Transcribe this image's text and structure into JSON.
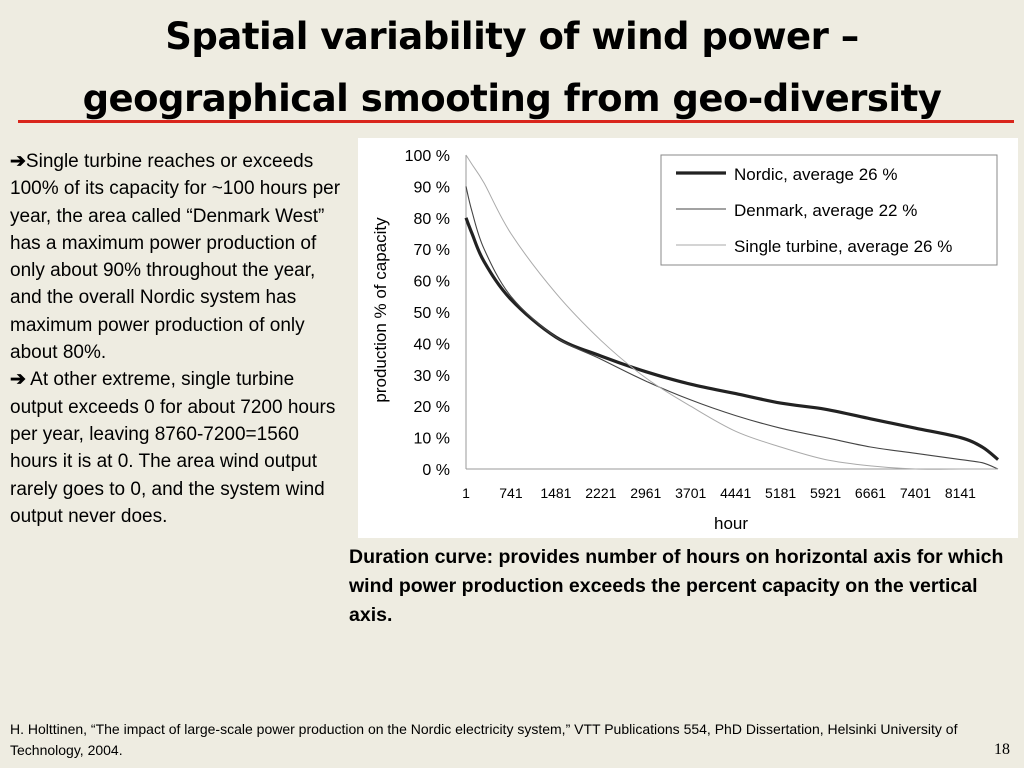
{
  "slide": {
    "title_line1": "Spatial variability of wind power –",
    "title_line2": "geographical smooting from geo-diversity",
    "bullets": [
      {
        "arrow": "➔",
        "text": "Single turbine reaches or exceeds 100% of its capacity for ~100 hours per year, the area called “Denmark West” has a maximum power production of only about 90% throughout the year, and the overall Nordic system has maximum power production of only about 80%."
      },
      {
        "arrow": "➔",
        "text": " At other extreme, single turbine output exceeds 0 for about 7200 hours per year, leaving 8760-7200=1560 hours it is at 0. The area wind output rarely goes to 0, and the system wind output never does."
      }
    ],
    "caption": "Duration curve: provides number of hours on horizontal axis for which wind power production exceeds the percent capacity on the vertical axis.",
    "footer": "H. Holttinen, “The impact of large-scale power production on the Nordic electricity system,” VTT Publications 554, PhD Dissertation, Helsinki University of Technology, 2004.",
    "page_number": "18",
    "accent_color": "#d9261c",
    "background_color": "#eeece1"
  },
  "chart_data": {
    "type": "line",
    "xlabel": "hour",
    "ylabel": "production % of capacity",
    "xlim": [
      1,
      8760
    ],
    "ylim": [
      0,
      100
    ],
    "x_ticks": [
      "1",
      "741",
      "1481",
      "2221",
      "2961",
      "3701",
      "4441",
      "5181",
      "5921",
      "6661",
      "7401",
      "8141"
    ],
    "y_ticks": [
      "0 %",
      "10 %",
      "20 %",
      "30 %",
      "40 %",
      "50 %",
      "60 %",
      "70 %",
      "80 %",
      "90 %",
      "100 %"
    ],
    "legend_position": "top-right",
    "x": [
      1,
      100,
      300,
      741,
      1481,
      2221,
      2961,
      3701,
      4441,
      5181,
      5921,
      6661,
      7401,
      8141,
      8500,
      8760
    ],
    "series": [
      {
        "name": "Nordic, average 26 %",
        "style": "thick",
        "values": [
          80,
          75,
          66,
          54,
          42,
          36,
          31,
          27,
          24,
          21,
          19,
          16,
          13,
          10,
          7,
          3
        ]
      },
      {
        "name": "Denmark, average 22 %",
        "style": "thin",
        "values": [
          90,
          82,
          70,
          55,
          42,
          35,
          28,
          22,
          17,
          13,
          10,
          7,
          5,
          3,
          2,
          0
        ]
      },
      {
        "name": "Single turbine, average 26 %",
        "style": "light",
        "values": [
          100,
          97,
          91,
          75,
          56,
          41,
          29,
          20,
          12,
          7,
          3,
          1,
          0,
          0,
          0,
          0
        ]
      }
    ]
  }
}
